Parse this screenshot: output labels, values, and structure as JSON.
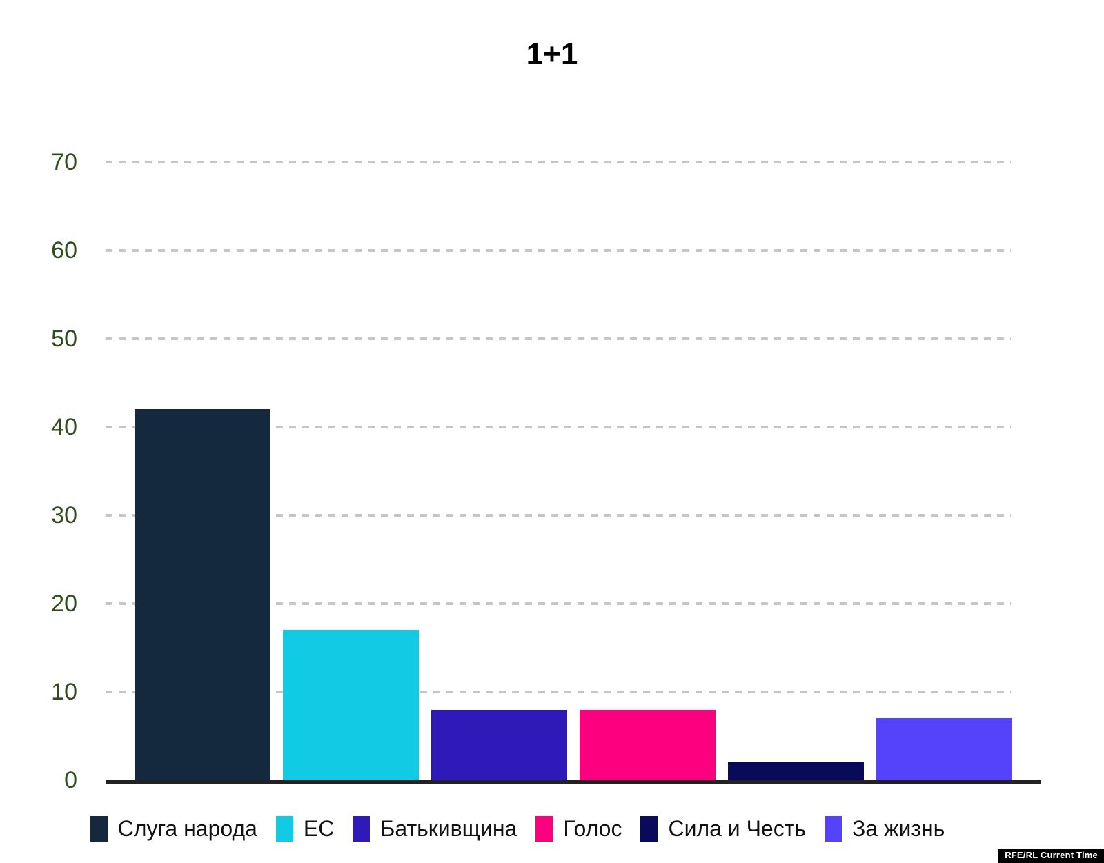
{
  "chart_data": {
    "type": "bar",
    "title": "1+1",
    "categories": [
      "Слуга народа",
      "ЕС",
      "Батькивщина",
      "Голос",
      "Сила и Честь",
      "За жизнь"
    ],
    "values": [
      42,
      17,
      8,
      8,
      2,
      7
    ],
    "colors": [
      "#14293e",
      "#10cbe3",
      "#2f19b8",
      "#fc0080",
      "#0a0a5a",
      "#5443fb"
    ],
    "xlabel": "",
    "ylabel": "",
    "ylim": [
      0,
      70
    ],
    "yticks": [
      0,
      10,
      20,
      30,
      40,
      50,
      60,
      70
    ],
    "grid": "horizontal-dashed",
    "legend_position": "bottom"
  },
  "styles": {
    "background": "#ffffff",
    "title_color": "#000000",
    "tick_label_color": "#304d1d",
    "gridline_color": "#c6c6c6",
    "axis_color": "#222222"
  },
  "badge": {
    "label": "RFE/RL Current Time",
    "bg": "#000000",
    "fg": "#ffffff"
  }
}
